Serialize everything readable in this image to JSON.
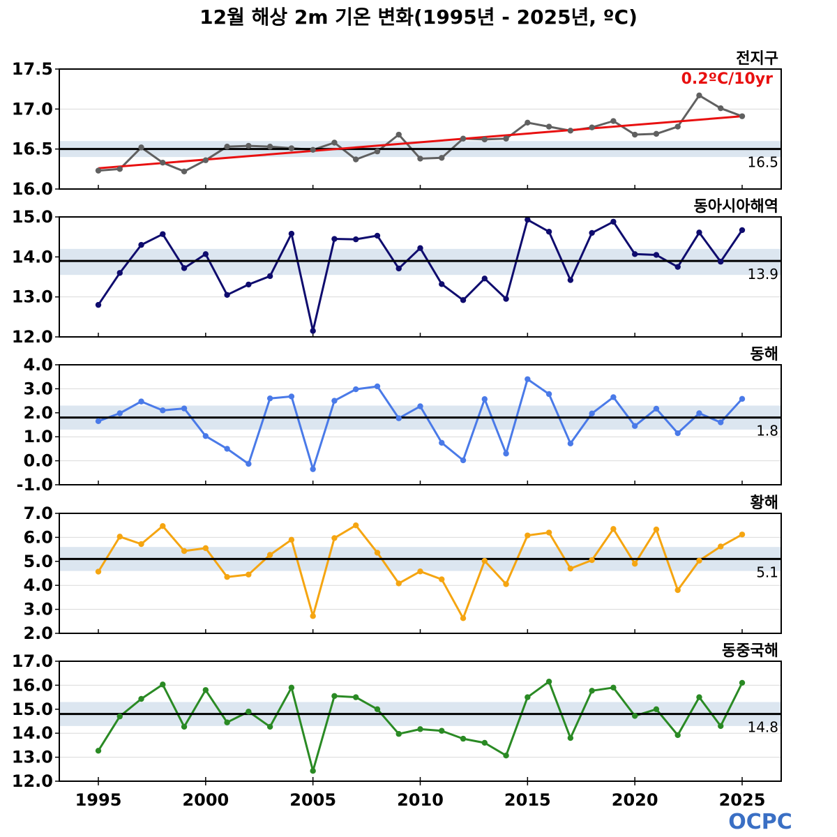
{
  "title": "12월 해상 2m 기온 변화(1995년 - 2025년, ºC)",
  "logo": "OCPC",
  "colors": {
    "global": "#606060",
    "east_asia": "#0f0c6e",
    "east_sea": "#4a7ae8",
    "yellow_sea": "#f5a511",
    "east_china_sea": "#2a8a24",
    "trend": "#e81010",
    "band": "#dce6f0",
    "mean_line": "#000000",
    "logo": "#3a6fc4"
  },
  "chart_data": [
    {
      "type": "line",
      "region": "전지구",
      "color_key": "global",
      "ylim": [
        16.0,
        17.5
      ],
      "yticks": [
        "16.0",
        "16.5",
        "17.0",
        "17.5"
      ],
      "mean": 16.5,
      "mean_label": "16.5",
      "band": [
        16.4,
        16.6
      ],
      "trend_label": "0.2ºC/10yr",
      "trend_line": [
        16.26,
        16.91
      ],
      "x": [
        1995,
        1996,
        1997,
        1998,
        1999,
        2000,
        2001,
        2002,
        2003,
        2004,
        2005,
        2006,
        2007,
        2008,
        2009,
        2010,
        2011,
        2012,
        2013,
        2014,
        2015,
        2016,
        2017,
        2018,
        2019,
        2020,
        2021,
        2022,
        2023,
        2024,
        2025
      ],
      "values": [
        16.23,
        16.25,
        16.52,
        16.33,
        16.22,
        16.36,
        16.53,
        16.54,
        16.53,
        16.51,
        16.49,
        16.58,
        16.37,
        16.47,
        16.68,
        16.38,
        16.39,
        16.63,
        16.62,
        16.63,
        16.83,
        16.78,
        16.73,
        16.77,
        16.85,
        16.68,
        16.69,
        16.78,
        17.17,
        17.01,
        16.91
      ]
    },
    {
      "type": "line",
      "region": "동아시아해역",
      "color_key": "east_asia",
      "ylim": [
        12.0,
        15.0
      ],
      "yticks": [
        "12.0",
        "13.0",
        "14.0",
        "15.0"
      ],
      "mean": 13.9,
      "mean_label": "13.9",
      "band": [
        13.55,
        14.2
      ],
      "x": [
        1995,
        1996,
        1997,
        1998,
        1999,
        2000,
        2001,
        2002,
        2003,
        2004,
        2005,
        2006,
        2007,
        2008,
        2009,
        2010,
        2011,
        2012,
        2013,
        2014,
        2015,
        2016,
        2017,
        2018,
        2019,
        2020,
        2021,
        2022,
        2023,
        2024,
        2025
      ],
      "values": [
        12.8,
        13.6,
        14.3,
        14.57,
        13.72,
        14.07,
        13.05,
        13.31,
        13.52,
        14.58,
        12.15,
        14.45,
        14.44,
        14.53,
        13.71,
        14.22,
        13.32,
        12.92,
        13.46,
        12.95,
        14.93,
        14.63,
        13.42,
        14.6,
        14.88,
        14.07,
        14.05,
        13.75,
        14.61,
        13.88,
        14.67
      ]
    },
    {
      "type": "line",
      "region": "동해",
      "color_key": "east_sea",
      "ylim": [
        -1.0,
        4.0
      ],
      "yticks": [
        "-1.0",
        "0.0",
        "1.0",
        "2.0",
        "3.0",
        "4.0"
      ],
      "mean": 1.8,
      "mean_label": "1.8",
      "band": [
        1.3,
        2.3
      ],
      "x": [
        1995,
        1996,
        1997,
        1998,
        1999,
        2000,
        2001,
        2002,
        2003,
        2004,
        2005,
        2006,
        2007,
        2008,
        2009,
        2010,
        2011,
        2012,
        2013,
        2014,
        2015,
        2016,
        2017,
        2018,
        2019,
        2020,
        2021,
        2022,
        2023,
        2024,
        2025
      ],
      "values": [
        1.65,
        1.98,
        2.47,
        2.1,
        2.18,
        1.03,
        0.5,
        -0.13,
        2.6,
        2.68,
        -0.35,
        2.5,
        2.98,
        3.1,
        1.77,
        2.27,
        0.75,
        0.02,
        2.57,
        0.3,
        3.4,
        2.78,
        0.72,
        1.97,
        2.65,
        1.45,
        2.17,
        1.15,
        1.98,
        1.6,
        2.58
      ]
    },
    {
      "type": "line",
      "region": "황해",
      "color_key": "yellow_sea",
      "ylim": [
        2.0,
        7.0
      ],
      "yticks": [
        "2.0",
        "3.0",
        "4.0",
        "5.0",
        "6.0",
        "7.0"
      ],
      "mean": 5.1,
      "mean_label": "5.1",
      "band": [
        4.6,
        5.6
      ],
      "x": [
        1995,
        1996,
        1997,
        1998,
        1999,
        2000,
        2001,
        2002,
        2003,
        2004,
        2005,
        2006,
        2007,
        2008,
        2009,
        2010,
        2011,
        2012,
        2013,
        2014,
        2015,
        2016,
        2017,
        2018,
        2019,
        2020,
        2021,
        2022,
        2023,
        2024,
        2025
      ],
      "values": [
        4.57,
        6.03,
        5.72,
        6.47,
        5.43,
        5.55,
        4.35,
        4.45,
        5.27,
        5.9,
        2.72,
        5.97,
        6.5,
        5.36,
        4.08,
        4.58,
        4.25,
        2.63,
        5.02,
        4.05,
        6.08,
        6.2,
        4.7,
        5.05,
        6.35,
        4.9,
        6.33,
        3.8,
        5.03,
        5.62,
        6.12
      ]
    },
    {
      "type": "line",
      "region": "동중국해",
      "color_key": "east_china_sea",
      "ylim": [
        12.0,
        17.0
      ],
      "yticks": [
        "12.0",
        "13.0",
        "14.0",
        "15.0",
        "16.0",
        "17.0"
      ],
      "mean": 14.8,
      "mean_label": "14.8",
      "band": [
        14.3,
        15.3
      ],
      "x": [
        1995,
        1996,
        1997,
        1998,
        1999,
        2000,
        2001,
        2002,
        2003,
        2004,
        2005,
        2006,
        2007,
        2008,
        2009,
        2010,
        2011,
        2012,
        2013,
        2014,
        2015,
        2016,
        2017,
        2018,
        2019,
        2020,
        2021,
        2022,
        2023,
        2024,
        2025
      ],
      "values": [
        13.27,
        14.7,
        15.43,
        16.03,
        14.27,
        15.8,
        14.45,
        14.9,
        14.27,
        15.9,
        12.43,
        15.55,
        15.5,
        15.0,
        13.97,
        14.17,
        14.1,
        13.77,
        13.6,
        13.07,
        15.5,
        16.15,
        13.8,
        15.77,
        15.9,
        14.72,
        15.0,
        13.92,
        15.5,
        14.3,
        16.1
      ]
    }
  ],
  "x_tick_labels": [
    "1995",
    "2000",
    "2005",
    "2010",
    "2015",
    "2020",
    "2025"
  ]
}
